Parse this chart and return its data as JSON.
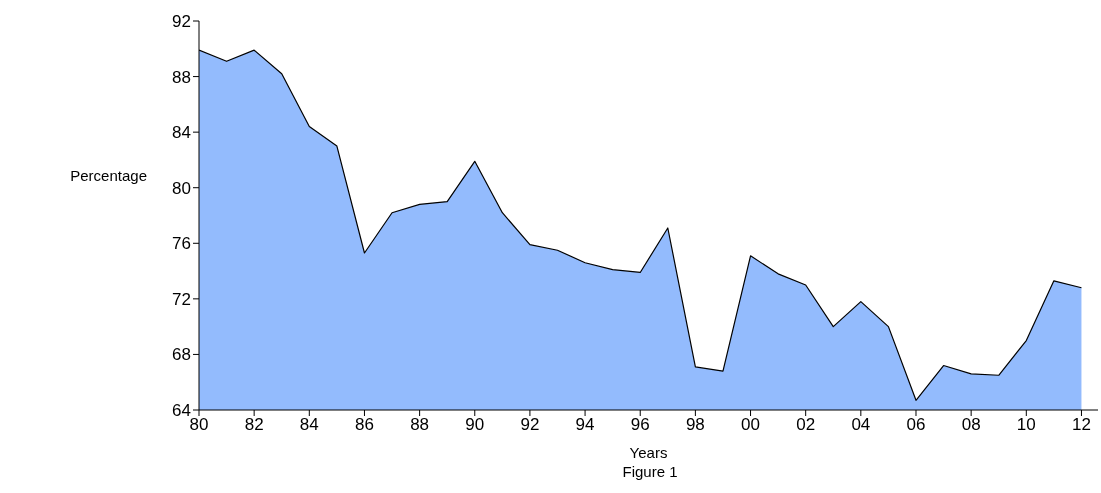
{
  "chart_data": {
    "type": "area",
    "xlabel": "Years",
    "ylabel": "Percentage",
    "annotations": [
      "Figure 1"
    ],
    "x": [
      1980,
      1981,
      1982,
      1983,
      1984,
      1985,
      1986,
      1987,
      1988,
      1989,
      1990,
      1991,
      1992,
      1993,
      1994,
      1995,
      1996,
      1997,
      1998,
      1999,
      2000,
      2001,
      2002,
      2003,
      2004,
      2005,
      2006,
      2007,
      2008,
      2009,
      2010,
      2011,
      2012
    ],
    "series": [
      {
        "color": "#93bbfd",
        "values": [
          89.9,
          89.1,
          89.9,
          88.2,
          84.4,
          83.0,
          75.3,
          78.2,
          78.8,
          79.0,
          81.9,
          78.2,
          75.9,
          75.5,
          74.6,
          74.1,
          73.9,
          77.1,
          67.1,
          66.8,
          75.1,
          73.8,
          73.0,
          70.0,
          71.8,
          70.0,
          64.7,
          67.2,
          66.6,
          66.5,
          69.0,
          73.3,
          72.8
        ]
      }
    ],
    "xlim": [
      1980,
      2012.6
    ],
    "xticks": [
      {
        "value": 1980,
        "label": "80"
      },
      {
        "value": 1982,
        "label": "82"
      },
      {
        "value": 1984,
        "label": "84"
      },
      {
        "value": 1986,
        "label": "86"
      },
      {
        "value": 1988,
        "label": "88"
      },
      {
        "value": 1990,
        "label": "90"
      },
      {
        "value": 1992,
        "label": "92"
      },
      {
        "value": 1994,
        "label": "94"
      },
      {
        "value": 1996,
        "label": "96"
      },
      {
        "value": 1998,
        "label": "98"
      },
      {
        "value": 2000,
        "label": "00"
      },
      {
        "value": 2002,
        "label": "02"
      },
      {
        "value": 2004,
        "label": "04"
      },
      {
        "value": 2006,
        "label": "06"
      },
      {
        "value": 2008,
        "label": "08"
      },
      {
        "value": 2010,
        "label": "10"
      },
      {
        "value": 2012,
        "label": "12"
      }
    ],
    "ylim": [
      64,
      92
    ],
    "yticks": [
      64,
      68,
      72,
      76,
      80,
      84,
      88,
      92
    ],
    "grid": false,
    "legend": false
  }
}
